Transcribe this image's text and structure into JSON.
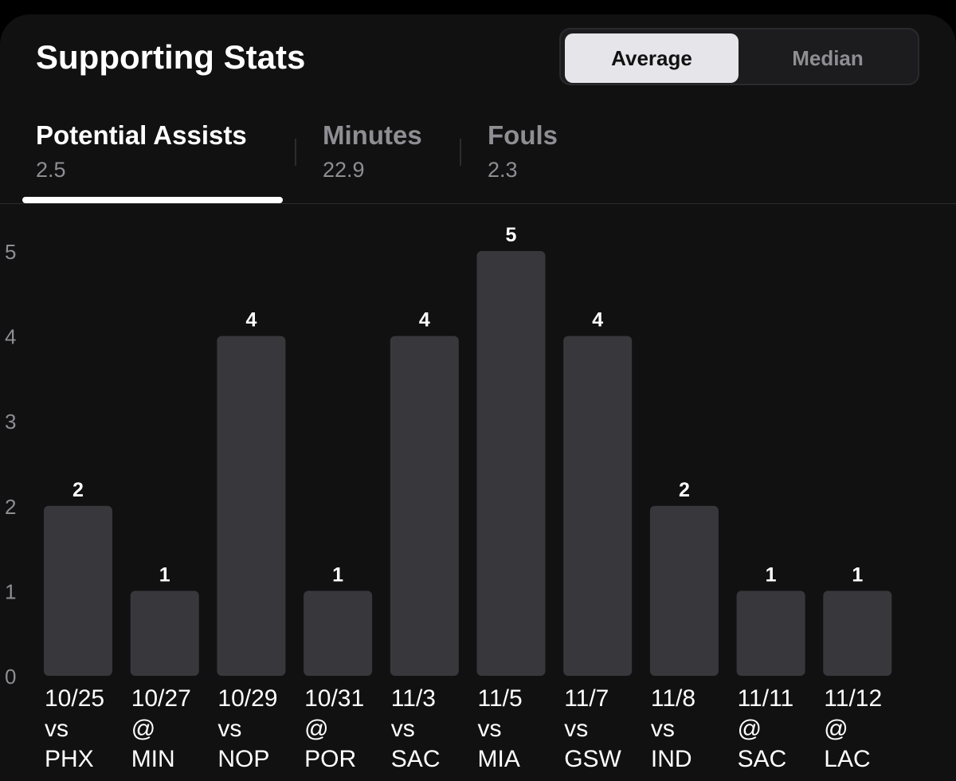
{
  "header": {
    "title": "Supporting Stats",
    "toggle": {
      "active": "Average",
      "inactive": "Median"
    }
  },
  "tabs": [
    {
      "label": "Potential Assists",
      "value": "2.5"
    },
    {
      "label": "Minutes",
      "value": "22.9"
    },
    {
      "label": "Fouls",
      "value": "2.3"
    }
  ],
  "colors": {
    "background": "#111112",
    "bar": "#38383c",
    "active_text": "#ffffff",
    "muted_text": "#8e8e93"
  },
  "chart_data": {
    "type": "bar",
    "categories": [
      [
        "10/25",
        "vs",
        "PHX"
      ],
      [
        "10/27",
        "@",
        "MIN"
      ],
      [
        "10/29",
        "vs",
        "NOP"
      ],
      [
        "10/31",
        "@",
        "POR"
      ],
      [
        "11/3",
        "vs",
        "SAC"
      ],
      [
        "11/5",
        "vs",
        "MIA"
      ],
      [
        "11/7",
        "vs",
        "GSW"
      ],
      [
        "11/8",
        "vs",
        "IND"
      ],
      [
        "11/11",
        "@",
        "SAC"
      ],
      [
        "11/12",
        "@",
        "LAC"
      ]
    ],
    "values": [
      2,
      1,
      4,
      1,
      4,
      5,
      4,
      2,
      1,
      1
    ],
    "yticks": [
      "0",
      "1",
      "2",
      "3",
      "4",
      "5"
    ],
    "ylim": [
      0,
      5
    ],
    "grid": false,
    "data_labels": true
  }
}
